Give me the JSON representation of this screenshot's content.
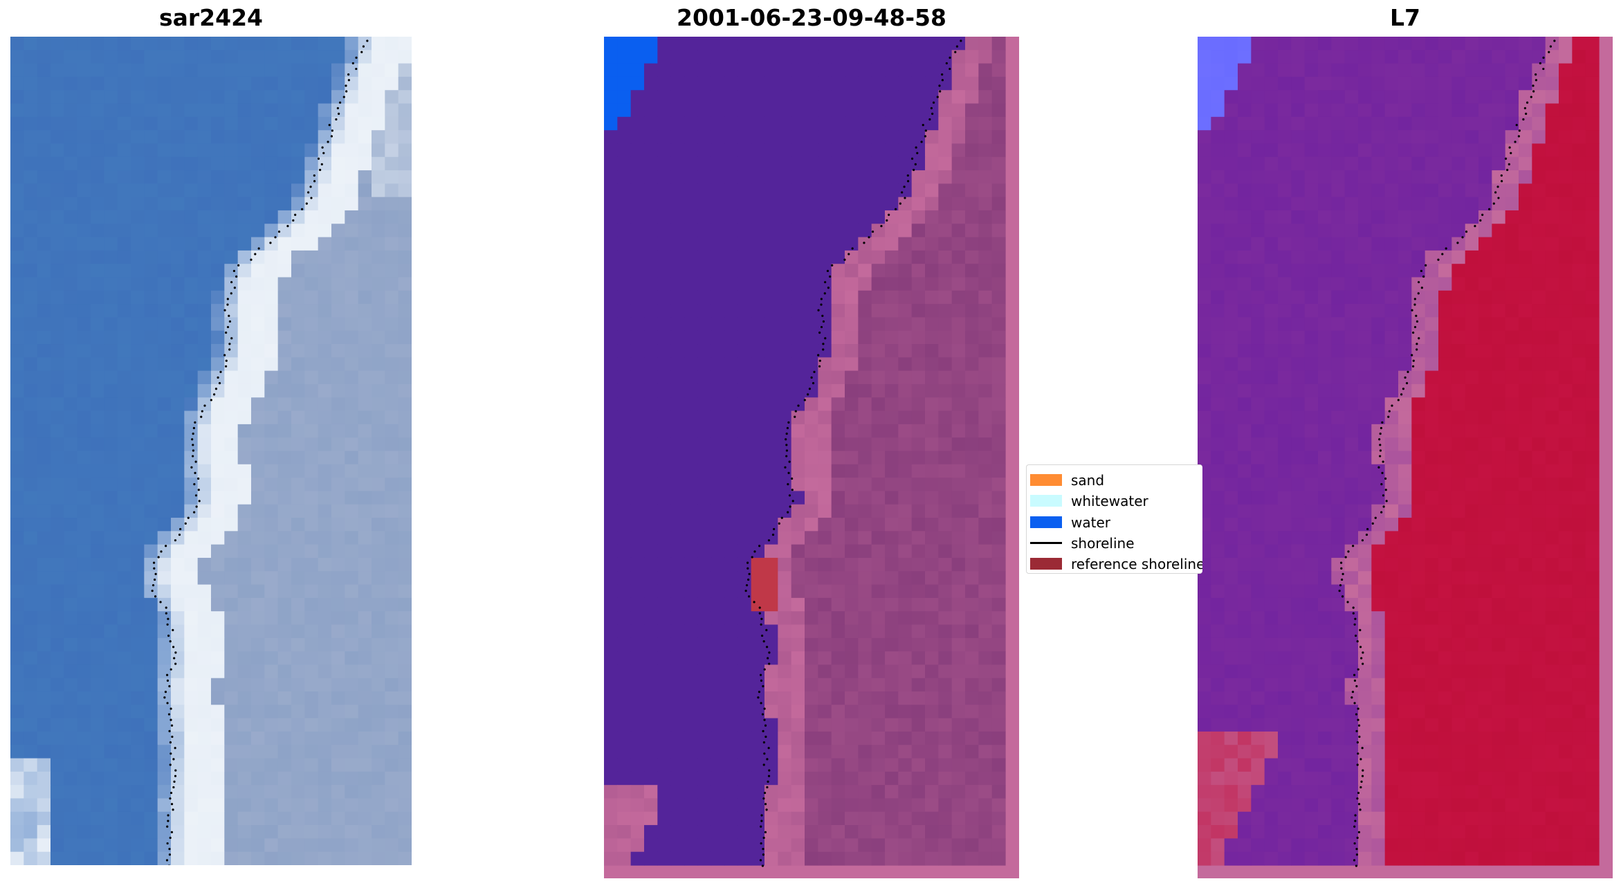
{
  "titles": {
    "left": "sar2424",
    "middle": "2001-06-23-09-48-58",
    "right": "L7"
  },
  "legend": {
    "items": [
      {
        "label": "sand",
        "kind": "patch",
        "color": "#ff8c33"
      },
      {
        "label": "whitewater",
        "kind": "patch",
        "color": "#c9fbff"
      },
      {
        "label": "water",
        "kind": "patch",
        "color": "#0a5ff0"
      },
      {
        "label": "shoreline",
        "kind": "line",
        "color": "#000000"
      },
      {
        "label": "reference shoreline",
        "kind": "patch",
        "color": "#9b2a35"
      }
    ]
  },
  "colors": {
    "sar_water": "#3f72bb",
    "sar_whitewater": "#e8eff7",
    "sar_land": "#8ea3c7",
    "class_water_overlay": "#54249a",
    "class_land": "#8a3f7d",
    "class_land_edge": "#c46a9c",
    "class_water_bright": "#0a5ff0",
    "class_ref_shoreline": "#c03848",
    "l7_water": "#7b2a9e",
    "l7_land": "#c0103c",
    "l7_edge": "#c46a9c",
    "l7_bright": "#6a6cff",
    "frame_pink": "#c46a9c"
  }
}
